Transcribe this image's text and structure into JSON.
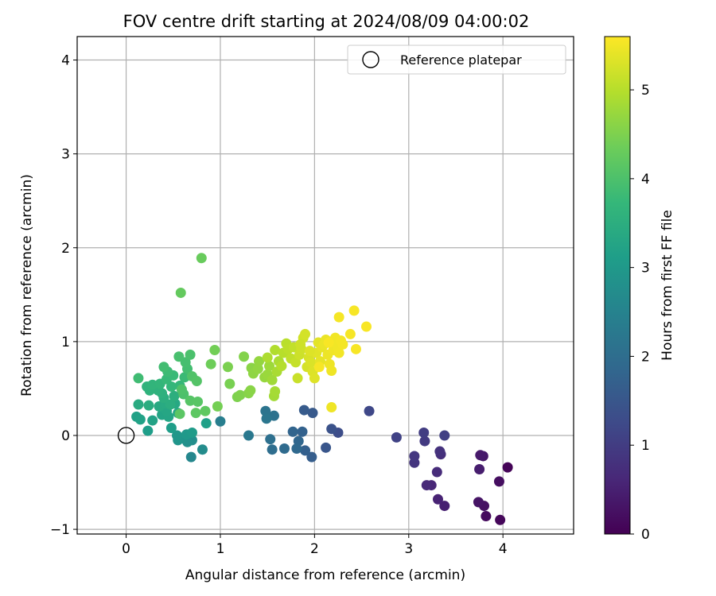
{
  "chart_data": {
    "type": "scatter",
    "title": "FOV centre drift starting at 2024/08/09 04:00:02",
    "xlabel": "Angular distance from reference (arcmin)",
    "ylabel": "Rotation from reference (arcmin)",
    "xlim": [
      -0.52,
      4.75
    ],
    "ylim": [
      -1.05,
      4.25
    ],
    "xticks": [
      0,
      1,
      2,
      3,
      4
    ],
    "yticks": [
      -1,
      0,
      1,
      2,
      3,
      4
    ],
    "grid": true,
    "legend": {
      "position": "top-right",
      "entries": [
        "Reference platepar"
      ]
    },
    "reference_point": {
      "x": 0,
      "y": 0
    },
    "colorbar": {
      "label": "Hours from first FF file",
      "range": [
        0,
        5.6
      ],
      "ticks": [
        0,
        1,
        2,
        3,
        4,
        5
      ],
      "colormap": "viridis"
    },
    "points": [
      {
        "x": 4.05,
        "y": -0.34,
        "t": 0.05
      },
      {
        "x": 3.97,
        "y": -0.9,
        "t": 0.1
      },
      {
        "x": 3.82,
        "y": -0.86,
        "t": 0.15
      },
      {
        "x": 3.96,
        "y": -0.49,
        "t": 0.2
      },
      {
        "x": 3.8,
        "y": -0.75,
        "t": 0.25
      },
      {
        "x": 3.74,
        "y": -0.71,
        "t": 0.3
      },
      {
        "x": 3.79,
        "y": -0.22,
        "t": 0.35
      },
      {
        "x": 3.76,
        "y": -0.21,
        "t": 0.4
      },
      {
        "x": 3.75,
        "y": -0.36,
        "t": 0.45
      },
      {
        "x": 3.38,
        "y": -0.75,
        "t": 0.5
      },
      {
        "x": 3.31,
        "y": -0.68,
        "t": 0.55
      },
      {
        "x": 3.24,
        "y": -0.53,
        "t": 0.6
      },
      {
        "x": 3.19,
        "y": -0.53,
        "t": 0.65
      },
      {
        "x": 3.3,
        "y": -0.39,
        "t": 0.7
      },
      {
        "x": 3.34,
        "y": -0.2,
        "t": 0.75
      },
      {
        "x": 3.33,
        "y": -0.17,
        "t": 0.8
      },
      {
        "x": 3.06,
        "y": -0.29,
        "t": 0.85
      },
      {
        "x": 3.06,
        "y": -0.22,
        "t": 0.9
      },
      {
        "x": 3.17,
        "y": -0.06,
        "t": 0.95
      },
      {
        "x": 3.16,
        "y": 0.03,
        "t": 1.0
      },
      {
        "x": 3.38,
        "y": 0.0,
        "t": 1.05
      },
      {
        "x": 2.87,
        "y": -0.02,
        "t": 1.1
      },
      {
        "x": 2.58,
        "y": 0.26,
        "t": 1.2
      },
      {
        "x": 2.25,
        "y": 0.03,
        "t": 1.3
      },
      {
        "x": 2.18,
        "y": 0.07,
        "t": 1.4
      },
      {
        "x": 2.12,
        "y": -0.13,
        "t": 1.5
      },
      {
        "x": 1.98,
        "y": 0.24,
        "t": 1.55
      },
      {
        "x": 1.89,
        "y": 0.27,
        "t": 1.6
      },
      {
        "x": 1.97,
        "y": -0.23,
        "t": 1.65
      },
      {
        "x": 1.9,
        "y": -0.16,
        "t": 1.7
      },
      {
        "x": 1.87,
        "y": 0.04,
        "t": 1.75
      },
      {
        "x": 1.77,
        "y": 0.04,
        "t": 1.8
      },
      {
        "x": 1.83,
        "y": -0.06,
        "t": 1.85
      },
      {
        "x": 1.81,
        "y": -0.14,
        "t": 1.9
      },
      {
        "x": 1.68,
        "y": -0.14,
        "t": 1.95
      },
      {
        "x": 1.55,
        "y": -0.15,
        "t": 2.0
      },
      {
        "x": 1.53,
        "y": -0.04,
        "t": 2.05
      },
      {
        "x": 1.57,
        "y": 0.21,
        "t": 2.1
      },
      {
        "x": 1.48,
        "y": 0.26,
        "t": 2.15
      },
      {
        "x": 1.49,
        "y": 0.18,
        "t": 2.2
      },
      {
        "x": 1.3,
        "y": 0.0,
        "t": 2.25
      },
      {
        "x": 1.0,
        "y": 0.15,
        "t": 2.4
      },
      {
        "x": 0.69,
        "y": -0.23,
        "t": 2.6
      },
      {
        "x": 0.81,
        "y": -0.15,
        "t": 2.7
      },
      {
        "x": 0.7,
        "y": -0.05,
        "t": 2.75
      },
      {
        "x": 0.65,
        "y": -0.07,
        "t": 2.8
      },
      {
        "x": 0.6,
        "y": -0.03,
        "t": 2.85
      },
      {
        "x": 0.55,
        "y": -0.05,
        "t": 2.9
      },
      {
        "x": 0.54,
        "y": 0.0,
        "t": 2.95
      },
      {
        "x": 0.64,
        "y": 0.01,
        "t": 3.0
      },
      {
        "x": 0.7,
        "y": 0.03,
        "t": 3.05
      },
      {
        "x": 0.23,
        "y": 0.05,
        "t": 3.1
      },
      {
        "x": 0.48,
        "y": 0.08,
        "t": 3.12
      },
      {
        "x": 0.85,
        "y": 0.13,
        "t": 3.15
      },
      {
        "x": 0.11,
        "y": 0.2,
        "t": 3.18
      },
      {
        "x": 0.15,
        "y": 0.17,
        "t": 3.2
      },
      {
        "x": 0.28,
        "y": 0.16,
        "t": 3.22
      },
      {
        "x": 0.38,
        "y": 0.22,
        "t": 3.25
      },
      {
        "x": 0.45,
        "y": 0.2,
        "t": 3.28
      },
      {
        "x": 0.55,
        "y": 0.24,
        "t": 3.3
      },
      {
        "x": 0.43,
        "y": 0.26,
        "t": 3.32
      },
      {
        "x": 0.52,
        "y": 0.34,
        "t": 3.35
      },
      {
        "x": 0.35,
        "y": 0.31,
        "t": 3.38
      },
      {
        "x": 0.42,
        "y": 0.34,
        "t": 3.4
      },
      {
        "x": 0.13,
        "y": 0.33,
        "t": 3.42
      },
      {
        "x": 0.24,
        "y": 0.32,
        "t": 3.45
      },
      {
        "x": 0.47,
        "y": 0.33,
        "t": 3.48
      },
      {
        "x": 0.4,
        "y": 0.4,
        "t": 3.5
      },
      {
        "x": 0.51,
        "y": 0.42,
        "t": 3.52
      },
      {
        "x": 0.38,
        "y": 0.45,
        "t": 3.55
      },
      {
        "x": 0.34,
        "y": 0.48,
        "t": 3.58
      },
      {
        "x": 0.25,
        "y": 0.48,
        "t": 3.6
      },
      {
        "x": 0.22,
        "y": 0.52,
        "t": 3.62
      },
      {
        "x": 0.28,
        "y": 0.54,
        "t": 3.65
      },
      {
        "x": 0.36,
        "y": 0.55,
        "t": 3.68
      },
      {
        "x": 0.48,
        "y": 0.52,
        "t": 3.7
      },
      {
        "x": 0.57,
        "y": 0.53,
        "t": 3.72
      },
      {
        "x": 0.43,
        "y": 0.6,
        "t": 3.75
      },
      {
        "x": 0.5,
        "y": 0.64,
        "t": 3.78
      },
      {
        "x": 0.62,
        "y": 0.62,
        "t": 3.8
      },
      {
        "x": 0.44,
        "y": 0.68,
        "t": 3.82
      },
      {
        "x": 0.13,
        "y": 0.61,
        "t": 3.85
      },
      {
        "x": 0.4,
        "y": 0.73,
        "t": 3.88
      },
      {
        "x": 0.65,
        "y": 0.71,
        "t": 3.9
      },
      {
        "x": 0.63,
        "y": 0.78,
        "t": 3.92
      },
      {
        "x": 0.56,
        "y": 0.84,
        "t": 3.95
      },
      {
        "x": 0.68,
        "y": 0.86,
        "t": 3.98
      },
      {
        "x": 0.61,
        "y": 0.44,
        "t": 4.0
      },
      {
        "x": 0.59,
        "y": 0.49,
        "t": 4.02
      },
      {
        "x": 0.7,
        "y": 0.63,
        "t": 4.05
      },
      {
        "x": 0.75,
        "y": 0.58,
        "t": 4.08
      },
      {
        "x": 0.68,
        "y": 0.37,
        "t": 4.1
      },
      {
        "x": 0.76,
        "y": 0.36,
        "t": 4.12
      },
      {
        "x": 0.57,
        "y": 0.23,
        "t": 4.15
      },
      {
        "x": 0.74,
        "y": 0.24,
        "t": 4.18
      },
      {
        "x": 0.84,
        "y": 0.26,
        "t": 4.2
      },
      {
        "x": 0.58,
        "y": 1.52,
        "t": 4.25
      },
      {
        "x": 0.8,
        "y": 1.89,
        "t": 4.3
      },
      {
        "x": 0.9,
        "y": 0.76,
        "t": 4.35
      },
      {
        "x": 0.94,
        "y": 0.91,
        "t": 4.4
      },
      {
        "x": 0.97,
        "y": 0.31,
        "t": 4.42
      },
      {
        "x": 1.1,
        "y": 0.55,
        "t": 4.45
      },
      {
        "x": 1.08,
        "y": 0.73,
        "t": 4.48
      },
      {
        "x": 1.18,
        "y": 0.41,
        "t": 4.5
      },
      {
        "x": 1.21,
        "y": 0.43,
        "t": 4.52
      },
      {
        "x": 1.25,
        "y": 0.84,
        "t": 4.55
      },
      {
        "x": 1.3,
        "y": 0.45,
        "t": 4.58
      },
      {
        "x": 1.32,
        "y": 0.48,
        "t": 4.6
      },
      {
        "x": 1.33,
        "y": 0.72,
        "t": 4.62
      },
      {
        "x": 1.35,
        "y": 0.66,
        "t": 4.65
      },
      {
        "x": 1.4,
        "y": 0.71,
        "t": 4.68
      },
      {
        "x": 1.41,
        "y": 0.79,
        "t": 4.7
      },
      {
        "x": 1.47,
        "y": 0.62,
        "t": 4.72
      },
      {
        "x": 1.5,
        "y": 0.65,
        "t": 4.75
      },
      {
        "x": 1.52,
        "y": 0.74,
        "t": 4.78
      },
      {
        "x": 1.55,
        "y": 0.59,
        "t": 4.8
      },
      {
        "x": 1.57,
        "y": 0.42,
        "t": 4.82
      },
      {
        "x": 1.58,
        "y": 0.47,
        "t": 4.85
      },
      {
        "x": 1.6,
        "y": 0.68,
        "t": 4.88
      },
      {
        "x": 1.62,
        "y": 0.79,
        "t": 4.9
      },
      {
        "x": 1.5,
        "y": 0.83,
        "t": 4.92
      },
      {
        "x": 1.58,
        "y": 0.91,
        "t": 4.95
      },
      {
        "x": 1.65,
        "y": 0.74,
        "t": 4.98
      },
      {
        "x": 1.67,
        "y": 0.88,
        "t": 5.0
      },
      {
        "x": 1.7,
        "y": 0.98,
        "t": 5.02
      },
      {
        "x": 1.72,
        "y": 0.92,
        "t": 5.05
      },
      {
        "x": 1.75,
        "y": 0.82,
        "t": 5.08
      },
      {
        "x": 1.78,
        "y": 0.94,
        "t": 5.1
      },
      {
        "x": 1.8,
        "y": 0.78,
        "t": 5.12
      },
      {
        "x": 1.82,
        "y": 0.61,
        "t": 5.15
      },
      {
        "x": 1.84,
        "y": 0.86,
        "t": 5.18
      },
      {
        "x": 1.86,
        "y": 0.92,
        "t": 5.2
      },
      {
        "x": 1.88,
        "y": 1.04,
        "t": 5.22
      },
      {
        "x": 1.9,
        "y": 1.08,
        "t": 5.24
      },
      {
        "x": 1.92,
        "y": 0.73,
        "t": 5.26
      },
      {
        "x": 1.94,
        "y": 0.83,
        "t": 5.28
      },
      {
        "x": 1.96,
        "y": 0.78,
        "t": 5.3
      },
      {
        "x": 1.98,
        "y": 0.68,
        "t": 5.32
      },
      {
        "x": 2.0,
        "y": 0.61,
        "t": 5.34
      },
      {
        "x": 2.02,
        "y": 0.88,
        "t": 5.36
      },
      {
        "x": 2.04,
        "y": 0.99,
        "t": 5.38
      },
      {
        "x": 2.06,
        "y": 0.79,
        "t": 5.4
      },
      {
        "x": 2.08,
        "y": 0.94,
        "t": 5.42
      },
      {
        "x": 2.1,
        "y": 0.97,
        "t": 5.44
      },
      {
        "x": 2.12,
        "y": 1.02,
        "t": 5.45
      },
      {
        "x": 2.14,
        "y": 0.86,
        "t": 5.46
      },
      {
        "x": 2.16,
        "y": 0.76,
        "t": 5.47
      },
      {
        "x": 2.18,
        "y": 0.69,
        "t": 5.48
      },
      {
        "x": 2.18,
        "y": 0.3,
        "t": 5.48
      },
      {
        "x": 2.2,
        "y": 0.91,
        "t": 5.49
      },
      {
        "x": 2.22,
        "y": 1.04,
        "t": 5.5
      },
      {
        "x": 2.24,
        "y": 0.95,
        "t": 5.5
      },
      {
        "x": 2.26,
        "y": 0.88,
        "t": 5.51
      },
      {
        "x": 2.28,
        "y": 1.01,
        "t": 5.52
      },
      {
        "x": 2.3,
        "y": 0.97,
        "t": 5.52
      },
      {
        "x": 2.26,
        "y": 1.26,
        "t": 5.53
      },
      {
        "x": 2.38,
        "y": 1.08,
        "t": 5.54
      },
      {
        "x": 2.42,
        "y": 1.33,
        "t": 5.55
      },
      {
        "x": 2.44,
        "y": 0.92,
        "t": 5.55
      },
      {
        "x": 2.55,
        "y": 1.16,
        "t": 5.56
      },
      {
        "x": 2.15,
        "y": 0.99,
        "t": 5.56
      },
      {
        "x": 2.05,
        "y": 0.73,
        "t": 5.55
      },
      {
        "x": 1.95,
        "y": 0.9,
        "t": 5.33
      },
      {
        "x": 1.85,
        "y": 0.97,
        "t": 5.19
      }
    ]
  }
}
